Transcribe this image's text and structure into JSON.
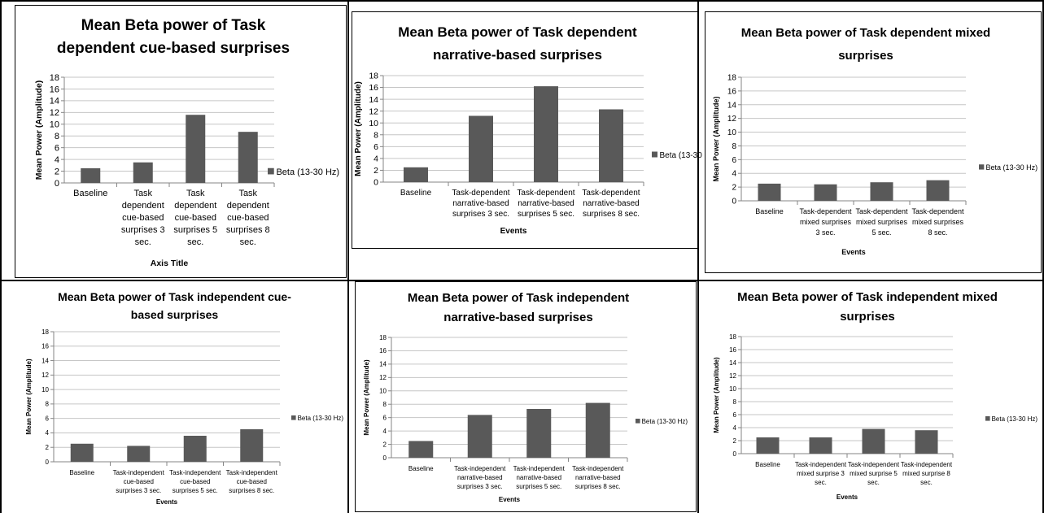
{
  "colors": {
    "bar": "#595959",
    "grid": "#c6c6c6",
    "axis": "#868686",
    "text": "#000000",
    "border": "#000000"
  },
  "chart_data": [
    {
      "type": "bar",
      "title": "Mean Beta power of Task dependent cue-based surprises",
      "xlabel": "Axis Title",
      "ylabel": "Mean Power (Amplitude)",
      "ylim": [
        0,
        18
      ],
      "yticks": [
        0,
        2,
        4,
        6,
        8,
        10,
        12,
        14,
        16,
        18
      ],
      "grid": true,
      "legend_position": "right",
      "categories": [
        "Baseline",
        "Task dependent cue-based surprises 3 sec.",
        "Task dependent cue-based surprises 5 sec.",
        "Task dependent cue-based surprises 8 sec."
      ],
      "series": [
        {
          "name": "Beta (13-30 Hz)",
          "values": [
            2.5,
            3.5,
            11.6,
            8.7
          ]
        }
      ]
    },
    {
      "type": "bar",
      "title": "Mean Beta power of Task dependent narrative-based surprises",
      "xlabel": "Events",
      "ylabel": "Mean Power (Amplitude)",
      "ylim": [
        0,
        18
      ],
      "yticks": [
        0,
        2,
        4,
        6,
        8,
        10,
        12,
        14,
        16,
        18
      ],
      "grid": true,
      "legend_position": "right",
      "categories": [
        "Baseline",
        "Task-dependent narrative-based surprises 3 sec.",
        "Task-dependent narrative-based surprises 5 sec.",
        "Task-dependent narrative-based surprises 8 sec."
      ],
      "series": [
        {
          "name": "Beta (13-30",
          "values": [
            2.5,
            11.2,
            16.2,
            12.3
          ]
        }
      ]
    },
    {
      "type": "bar",
      "title": "Mean Beta power of Task dependent mixed surprises",
      "xlabel": "Events",
      "ylabel": "Mean Power (Amplitude)",
      "ylim": [
        0,
        18
      ],
      "yticks": [
        0,
        2,
        4,
        6,
        8,
        10,
        12,
        14,
        16,
        18
      ],
      "grid": true,
      "legend_position": "right",
      "categories": [
        "Baseline",
        "Task-dependent mixed surprises 3 sec.",
        "Task-dependent mixed surprises 5 sec.",
        "Task-dependent mixed surprises 8 sec."
      ],
      "series": [
        {
          "name": "Beta (13-30 Hz)",
          "values": [
            2.5,
            2.4,
            2.7,
            3.0
          ]
        }
      ]
    },
    {
      "type": "bar",
      "title": "Mean Beta power of Task independent cue-based surprises",
      "xlabel": "Events",
      "ylabel": "Mean Power (Amplitude)",
      "ylim": [
        0,
        18
      ],
      "yticks": [
        0,
        2,
        4,
        6,
        8,
        10,
        12,
        14,
        16,
        18
      ],
      "grid": true,
      "legend_position": "right",
      "categories": [
        "Baseline",
        "Task-independent cue-based surprises 3 sec.",
        "Task-independent cue-based surprises 5 sec.",
        "Task-independent cue-based surprises 8 sec."
      ],
      "series": [
        {
          "name": "Beta (13-30 Hz)",
          "values": [
            2.5,
            2.2,
            3.6,
            4.5
          ]
        }
      ]
    },
    {
      "type": "bar",
      "title": "Mean Beta power of Task independent narrative-based surprises",
      "xlabel": "Events",
      "ylabel": "Mean Power (Amplitude)",
      "ylim": [
        0,
        18
      ],
      "yticks": [
        0,
        2,
        4,
        6,
        8,
        10,
        12,
        14,
        16,
        18
      ],
      "grid": true,
      "legend_position": "right",
      "categories": [
        "Baseline",
        "Task-independent narrative-based surprises 3 sec.",
        "Task-independent narrative-based surprises 5 sec.",
        "Task-independent narrative-based surprises 8 sec."
      ],
      "series": [
        {
          "name": "Beta (13-30 Hz)",
          "values": [
            2.5,
            6.4,
            7.3,
            8.2
          ]
        }
      ]
    },
    {
      "type": "bar",
      "title": "Mean Beta power of Task independent mixed surprises",
      "xlabel": "Events",
      "ylabel": "Mean Power (Amplitude)",
      "ylim": [
        0,
        18
      ],
      "yticks": [
        0,
        2,
        4,
        6,
        8,
        10,
        12,
        14,
        16,
        18
      ],
      "grid": true,
      "legend_position": "right",
      "categories": [
        "Baseline",
        "Task-independent mixed surprise 3 sec.",
        "Task-independent mixed surprise 5 sec.",
        "Task-independent mixed surprise 8 sec."
      ],
      "series": [
        {
          "name": "Beta (13-30 Hz)",
          "values": [
            2.5,
            2.5,
            3.8,
            3.6
          ]
        }
      ]
    }
  ]
}
